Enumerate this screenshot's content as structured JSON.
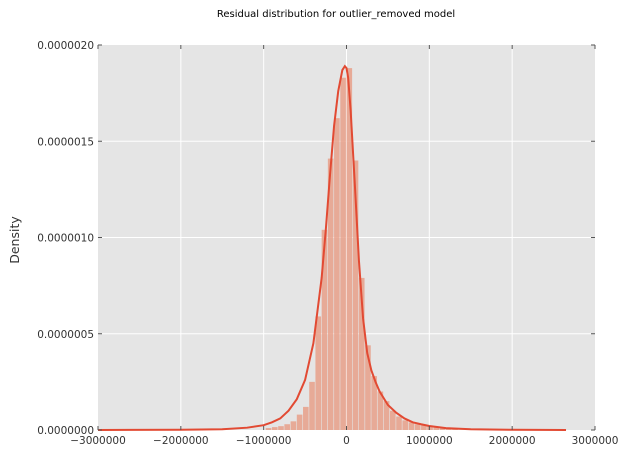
{
  "chart_data": {
    "type": "area",
    "title": "Residual distribution for outlier_removed model",
    "xlabel": "",
    "ylabel": "Density",
    "xlim": [
      -3000000,
      3000000
    ],
    "ylim": [
      0,
      2e-06
    ],
    "x_ticks": [
      -3000000,
      -2000000,
      -1000000,
      0,
      1000000,
      2000000,
      3000000
    ],
    "x_tick_labels": [
      "−3000000",
      "−2000000",
      "−1000000",
      "0",
      "1000000",
      "2000000",
      "3000000"
    ],
    "y_ticks": [
      0,
      5e-07,
      1e-06,
      1.5e-06,
      2e-06
    ],
    "y_tick_labels": [
      "0.0000000",
      "0.0000005",
      "0.0000010",
      "0.0000015",
      "0.0000020"
    ],
    "grid": true,
    "colors": {
      "plot_bg": "#e5e5e5",
      "grid": "#ffffff",
      "hist": "#e8a08a",
      "kde": "#e24a33"
    },
    "histogram": {
      "bin_width": 75000,
      "bins": [
        {
          "x0": -975000,
          "x1": -900000,
          "density": 1e-08
        },
        {
          "x0": -900000,
          "x1": -825000,
          "density": 1.5e-08
        },
        {
          "x0": -825000,
          "x1": -750000,
          "density": 2e-08
        },
        {
          "x0": -750000,
          "x1": -675000,
          "density": 3e-08
        },
        {
          "x0": -675000,
          "x1": -600000,
          "density": 4.5e-08
        },
        {
          "x0": -600000,
          "x1": -525000,
          "density": 8e-08
        },
        {
          "x0": -525000,
          "x1": -450000,
          "density": 1.2e-07
        },
        {
          "x0": -450000,
          "x1": -375000,
          "density": 2.5e-07
        },
        {
          "x0": -375000,
          "x1": -300000,
          "density": 5.9e-07
        },
        {
          "x0": -300000,
          "x1": -225000,
          "density": 1.04e-06
        },
        {
          "x0": -225000,
          "x1": -150000,
          "density": 1.41e-06
        },
        {
          "x0": -150000,
          "x1": -75000,
          "density": 1.62e-06
        },
        {
          "x0": -75000,
          "x1": 0,
          "density": 1.83e-06
        },
        {
          "x0": 0,
          "x1": 75000,
          "density": 1.88e-06
        },
        {
          "x0": 75000,
          "x1": 150000,
          "density": 1.4e-06
        },
        {
          "x0": 150000,
          "x1": 225000,
          "density": 7.9e-07
        },
        {
          "x0": 225000,
          "x1": 300000,
          "density": 4.4e-07
        },
        {
          "x0": 300000,
          "x1": 375000,
          "density": 2.8e-07
        },
        {
          "x0": 375000,
          "x1": 450000,
          "density": 2e-07
        },
        {
          "x0": 450000,
          "x1": 525000,
          "density": 1.5e-07
        },
        {
          "x0": 525000,
          "x1": 600000,
          "density": 1e-07
        },
        {
          "x0": 600000,
          "x1": 675000,
          "density": 7e-08
        },
        {
          "x0": 675000,
          "x1": 750000,
          "density": 5e-08
        },
        {
          "x0": 750000,
          "x1": 825000,
          "density": 4e-08
        },
        {
          "x0": 825000,
          "x1": 900000,
          "density": 3e-08
        },
        {
          "x0": 900000,
          "x1": 975000,
          "density": 2.5e-08
        },
        {
          "x0": 975000,
          "x1": 1050000,
          "density": 2e-08
        },
        {
          "x0": 1050000,
          "x1": 1125000,
          "density": 1.5e-08
        },
        {
          "x0": 1125000,
          "x1": 1200000,
          "density": 1e-08
        },
        {
          "x0": 1200000,
          "x1": 1275000,
          "density": 7e-09
        },
        {
          "x0": 1275000,
          "x1": 1350000,
          "density": 5e-09
        }
      ]
    },
    "kde": {
      "x": [
        -3000000,
        -2000000,
        -1500000,
        -1200000,
        -1000000,
        -900000,
        -800000,
        -700000,
        -600000,
        -500000,
        -400000,
        -300000,
        -250000,
        -200000,
        -150000,
        -100000,
        -50000,
        -20000,
        0,
        20000,
        50000,
        100000,
        150000,
        200000,
        250000,
        300000,
        350000,
        400000,
        500000,
        600000,
        700000,
        800000,
        900000,
        1000000,
        1200000,
        1500000,
        2000000,
        2650000
      ],
      "y": [
        0,
        1e-09,
        4e-09,
        1.2e-08,
        2.5e-08,
        4e-08,
        6e-08,
        1e-07,
        1.6e-07,
        2.6e-07,
        4.5e-07,
        7.9e-07,
        1.04e-06,
        1.32e-06,
        1.58e-06,
        1.76e-06,
        1.87e-06,
        1.89e-06,
        1.88e-06,
        1.83e-06,
        1.66e-06,
        1.28e-06,
        8.8e-07,
        5.8e-07,
        4e-07,
        3.1e-07,
        2.5e-07,
        2e-07,
        1.3e-07,
        9e-08,
        6e-08,
        4e-08,
        3e-08,
        2.1e-08,
        1e-08,
        4e-09,
        1e-09,
        0
      ]
    }
  }
}
